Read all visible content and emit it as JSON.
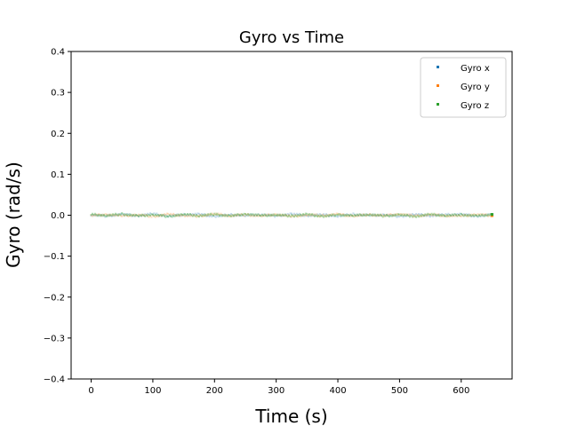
{
  "chart_data": {
    "type": "scatter",
    "title": "Gyro vs Time",
    "xlabel": "Time (s)",
    "ylabel": "Gyro (rad/s)",
    "xlim": [
      -32.5,
      682.5
    ],
    "ylim": [
      -0.4,
      0.4
    ],
    "xticks": [
      "0",
      "100",
      "200",
      "300",
      "400",
      "500",
      "600"
    ],
    "xtick_values": [
      0,
      100,
      200,
      300,
      400,
      500,
      600
    ],
    "yticks": [
      "0.4",
      "0.3",
      "0.2",
      "0.1",
      "0.0",
      "−0.1",
      "−0.2",
      "−0.3",
      "−0.4"
    ],
    "ytick_values": [
      0.4,
      0.3,
      0.2,
      0.1,
      0.0,
      -0.1,
      -0.2,
      -0.3,
      -0.4
    ],
    "grid": false,
    "legend_position": "top-right",
    "series": [
      {
        "name": "Gyro x",
        "color": "#1f77b4",
        "x_range": [
          0,
          650
        ],
        "values": "near 0 (approximately ±0.005)"
      },
      {
        "name": "Gyro y",
        "color": "#ff7f0e",
        "x_range": [
          0,
          650
        ],
        "values": "near 0 (approximately ±0.005)"
      },
      {
        "name": "Gyro z",
        "color": "#2ca02c",
        "x_range": [
          0,
          650
        ],
        "values": "near 0 (approximately ±0.005)"
      }
    ],
    "sample": {
      "x": [
        0,
        25,
        50,
        75,
        100,
        125,
        150,
        175,
        200,
        225,
        250,
        275,
        300,
        325,
        350,
        375,
        400,
        425,
        450,
        475,
        500,
        525,
        550,
        575,
        600,
        625,
        650
      ],
      "y_x": [
        0.001,
        -0.002,
        0.002,
        -0.001,
        0.003,
        -0.002,
        0.001,
        0.002,
        -0.003,
        0.001,
        -0.001,
        0.002,
        -0.002,
        0.003,
        -0.001,
        0.001,
        -0.002,
        0.002,
        -0.001,
        0.001,
        -0.003,
        0.002,
        -0.001,
        0.001,
        0.002,
        -0.002,
        0.001
      ],
      "y_y": [
        -0.001,
        0.002,
        -0.002,
        0.001,
        -0.003,
        0.002,
        -0.001,
        -0.002,
        0.003,
        -0.001,
        0.001,
        -0.002,
        0.002,
        -0.003,
        0.001,
        -0.001,
        0.002,
        -0.002,
        0.001,
        -0.001,
        0.003,
        -0.002,
        0.001,
        -0.001,
        -0.002,
        0.002,
        -0.001
      ],
      "y_z": [
        0.002,
        -0.001,
        0.003,
        -0.002,
        0.001,
        -0.003,
        0.002,
        -0.001,
        0.002,
        -0.002,
        0.003,
        -0.001,
        0.001,
        -0.002,
        0.002,
        -0.003,
        0.001,
        -0.001,
        0.002,
        -0.002,
        0.001,
        -0.003,
        0.002,
        -0.001,
        0.001,
        -0.002,
        0.002
      ]
    }
  }
}
